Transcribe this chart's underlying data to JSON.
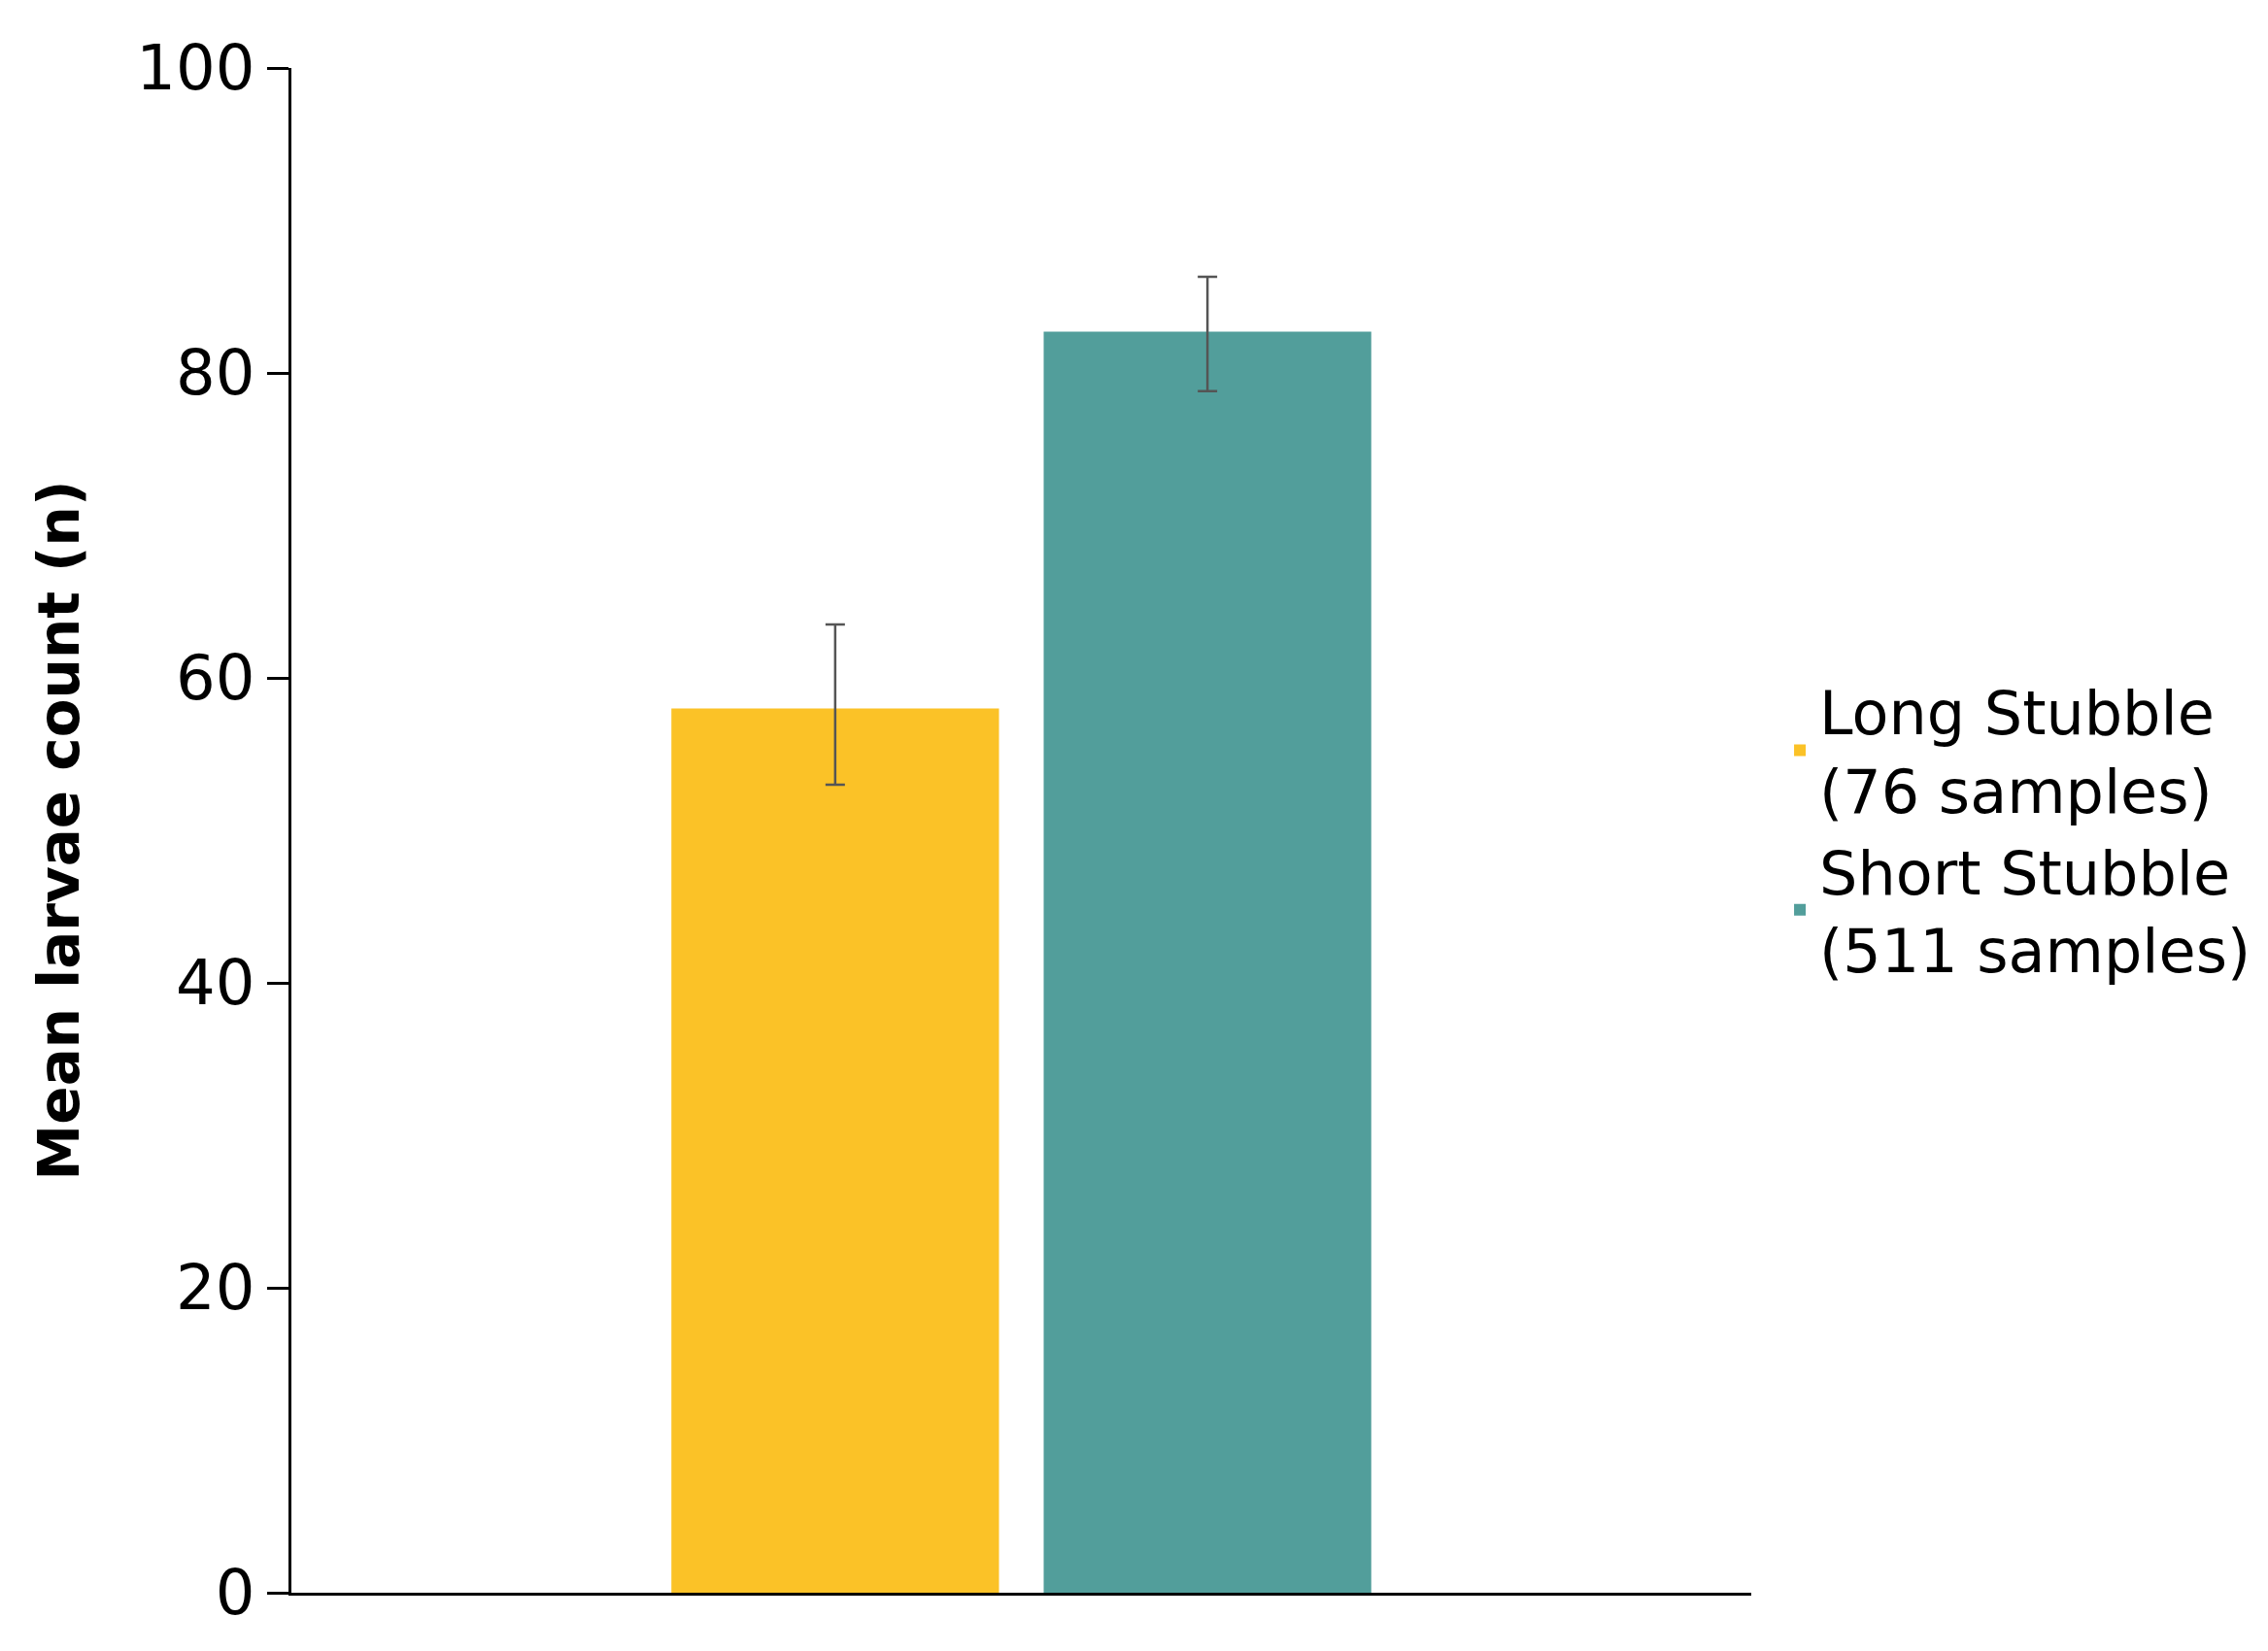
{
  "chart_data": {
    "type": "bar",
    "ylabel": "Mean larvae count (n)",
    "categories": [
      null
    ],
    "series": [
      {
        "name": "Long Stubble\n(76 samples)",
        "color": "#fbc227",
        "values": [
          58
        ],
        "errors": [
          [
            53,
            63.5
          ]
        ]
      },
      {
        "name": "Short Stubble\n(511 samples)",
        "color": "#529e9b",
        "values": [
          82.7
        ],
        "errors": [
          [
            78.8,
            86.3
          ]
        ]
      }
    ],
    "ylim": [
      0,
      100
    ],
    "yticks": [
      0,
      20,
      40,
      60,
      80,
      100
    ],
    "legend": "right"
  }
}
